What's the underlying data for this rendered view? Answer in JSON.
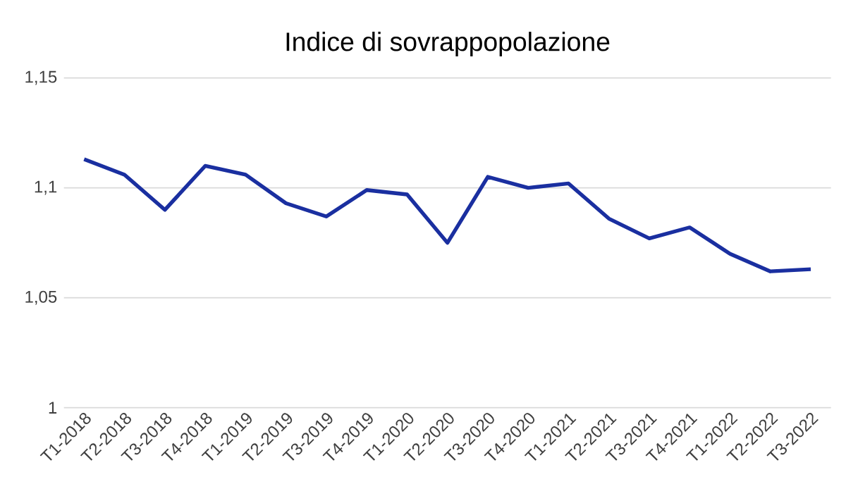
{
  "chart_data": {
    "type": "line",
    "title": "Indice di sovrappopolazione",
    "categories": [
      "T1-2018",
      "T2-2018",
      "T3-2018",
      "T4-2018",
      "T1-2019",
      "T2-2019",
      "T3-2019",
      "T4-2019",
      "T1-2020",
      "T2-2020",
      "T3-2020",
      "T4-2020",
      "T1-2021",
      "T2-2021",
      "T3-2021",
      "T4-2021",
      "T1-2022",
      "T2-2022",
      "T3-2022"
    ],
    "series": [
      {
        "color": "#1a2fa0",
        "values": [
          1.113,
          1.106,
          1.09,
          1.11,
          1.106,
          1.093,
          1.087,
          1.099,
          1.097,
          1.075,
          1.105,
          1.1,
          1.102,
          1.086,
          1.077,
          1.082,
          1.07,
          1.062,
          1.063
        ]
      }
    ],
    "ylim": [
      1,
      1.15
    ],
    "yticks": [
      {
        "value": 1,
        "label": "1"
      },
      {
        "value": 1.05,
        "label": "1,05"
      },
      {
        "value": 1.1,
        "label": "1,1"
      },
      {
        "value": 1.15,
        "label": "1,15"
      }
    ],
    "grid": "y",
    "marker": "none",
    "line_style": "solid"
  }
}
